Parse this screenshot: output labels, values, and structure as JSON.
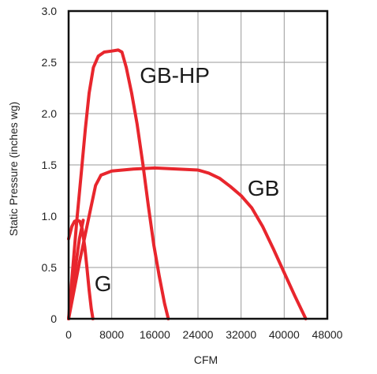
{
  "chart_data": {
    "type": "line",
    "xlabel": "CFM",
    "ylabel": "Static Pressure (inches wg)",
    "xlim": [
      0,
      48000
    ],
    "ylim": [
      0,
      3.0
    ],
    "x_ticks": [
      0,
      8000,
      16000,
      24000,
      32000,
      40000,
      48000
    ],
    "x_tick_labels": [
      "0",
      "8000",
      "16000",
      "24000",
      "32000",
      "40000",
      "48000"
    ],
    "y_ticks": [
      0,
      0.5,
      1.0,
      1.5,
      2.0,
      2.5,
      3.0
    ],
    "y_tick_labels": [
      "0",
      "0.5",
      "1.0",
      "1.5",
      "2.0",
      "2.5",
      "3.0"
    ],
    "grid": true,
    "line_color": "#e8262d",
    "series": [
      {
        "name": "GB-HP",
        "label_at": [
          13200,
          2.3
        ],
        "points": [
          [
            0,
            0
          ],
          [
            700,
            0.45
          ],
          [
            1500,
            0.95
          ],
          [
            2400,
            1.45
          ],
          [
            3100,
            1.85
          ],
          [
            3800,
            2.2
          ],
          [
            4600,
            2.45
          ],
          [
            5500,
            2.56
          ],
          [
            6600,
            2.6
          ],
          [
            8000,
            2.61
          ],
          [
            9200,
            2.62
          ],
          [
            9900,
            2.6
          ],
          [
            10700,
            2.45
          ],
          [
            11700,
            2.2
          ],
          [
            12700,
            1.9
          ],
          [
            13800,
            1.5
          ],
          [
            14800,
            1.1
          ],
          [
            15800,
            0.72
          ],
          [
            16800,
            0.42
          ],
          [
            17800,
            0.15
          ],
          [
            18500,
            0
          ]
        ]
      },
      {
        "name": "GB",
        "label_at": [
          33200,
          1.2
        ],
        "points": [
          [
            0,
            0
          ],
          [
            2000,
            0.55
          ],
          [
            4000,
            1.05
          ],
          [
            5000,
            1.3
          ],
          [
            6000,
            1.4
          ],
          [
            8000,
            1.44
          ],
          [
            12000,
            1.46
          ],
          [
            16000,
            1.47
          ],
          [
            24000,
            1.45
          ],
          [
            26000,
            1.42
          ],
          [
            28000,
            1.37
          ],
          [
            30000,
            1.29
          ],
          [
            32000,
            1.2
          ],
          [
            34000,
            1.08
          ],
          [
            36000,
            0.9
          ],
          [
            38000,
            0.68
          ],
          [
            40000,
            0.45
          ],
          [
            42000,
            0.22
          ],
          [
            44000,
            0
          ]
        ]
      },
      {
        "name": "G",
        "label_at": [
          4800,
          0.27
        ],
        "points": [
          [
            0,
            0.78
          ],
          [
            600,
            0.9
          ],
          [
            1100,
            0.95
          ],
          [
            1600,
            0.96
          ],
          [
            2100,
            0.95
          ],
          [
            2500,
            0.88
          ],
          [
            3000,
            0.7
          ],
          [
            3400,
            0.5
          ],
          [
            3800,
            0.28
          ],
          [
            4200,
            0.1
          ],
          [
            4500,
            0
          ]
        ]
      },
      {
        "name": "",
        "points": [
          [
            0,
            0
          ],
          [
            1000,
            0.4
          ],
          [
            2000,
            0.78
          ],
          [
            2700,
            0.96
          ]
        ]
      }
    ]
  }
}
